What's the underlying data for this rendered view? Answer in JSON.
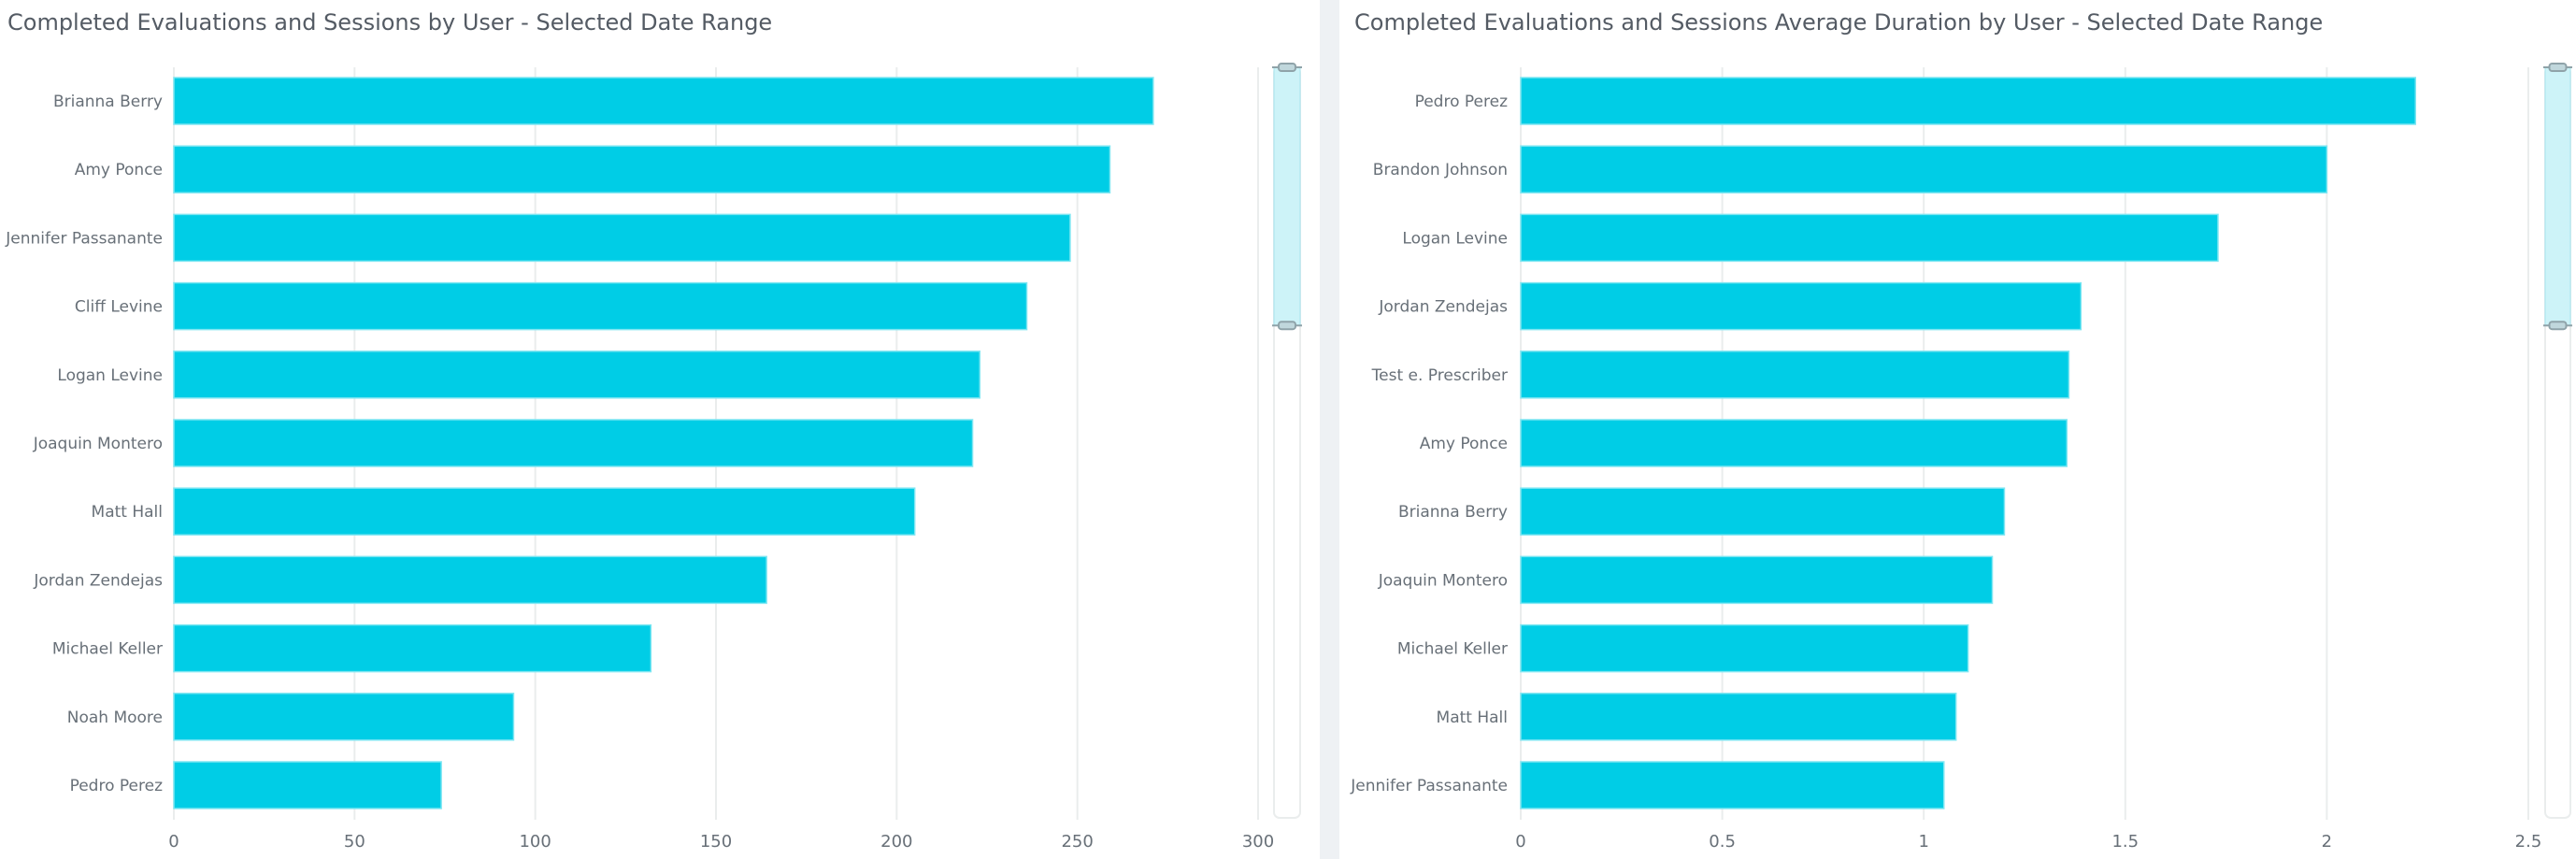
{
  "charts": [
    {
      "id": "left",
      "title": "Completed Evaluations and Sessions by User - Selected Date Range",
      "scrollbar": {
        "label": "chart-scrollbar",
        "visible_fraction_start": 0,
        "visible_fraction_end": 0.2
      }
    },
    {
      "id": "right",
      "title": "Completed Evaluations and Sessions Average Duration by User - Selected Date Range",
      "scrollbar": {
        "label": "chart-scrollbar",
        "visible_fraction_start": 0,
        "visible_fraction_end": 0.2
      }
    }
  ],
  "colors": {
    "bar": "#00cde6",
    "title": "#545b64",
    "label": "#687078",
    "grid": "#eaeded",
    "gutter": "#eef1f4"
  },
  "chart_data": [
    {
      "type": "bar",
      "orientation": "horizontal",
      "title": "Completed Evaluations and Sessions by User - Selected Date Range",
      "xlabel": "",
      "ylabel": "",
      "categories": [
        "Brianna Berry",
        "Amy Ponce",
        "Jennifer Passanante",
        "Cliff Levine",
        "Logan Levine",
        "Joaquin Montero",
        "Matt Hall",
        "Jordan Zendejas",
        "Michael Keller",
        "Noah Moore",
        "Pedro Perez"
      ],
      "values": [
        271,
        259,
        248,
        236,
        223,
        221,
        205,
        164,
        132,
        94,
        74
      ],
      "xlim": [
        0,
        300
      ],
      "xticks": [
        0,
        50,
        100,
        150,
        200,
        250,
        300
      ],
      "xtick_labels": [
        "0",
        "50",
        "100",
        "150",
        "200",
        "250",
        "300"
      ],
      "grid": true,
      "legend": "none"
    },
    {
      "type": "bar",
      "orientation": "horizontal",
      "title": "Completed Evaluations and Sessions Average Duration by User - Selected Date Range",
      "xlabel": "",
      "ylabel": "",
      "categories": [
        "Pedro Perez",
        "Brandon Johnson",
        "Logan Levine",
        "Jordan Zendejas",
        "Test e. Prescriber",
        "Amy Ponce",
        "Brianna Berry",
        "Joaquin Montero",
        "Michael Keller",
        "Matt Hall",
        "Jennifer Passanante"
      ],
      "values": [
        2.22,
        2.0,
        1.73,
        1.39,
        1.36,
        1.355,
        1.2,
        1.17,
        1.11,
        1.08,
        1.05
      ],
      "xlim": [
        0,
        2.5
      ],
      "xticks": [
        0,
        0.5,
        1,
        1.5,
        2,
        2.5
      ],
      "xtick_labels": [
        "0",
        "0.5",
        "1",
        "1.5",
        "2",
        "2.5"
      ],
      "grid": true,
      "legend": "none"
    }
  ]
}
